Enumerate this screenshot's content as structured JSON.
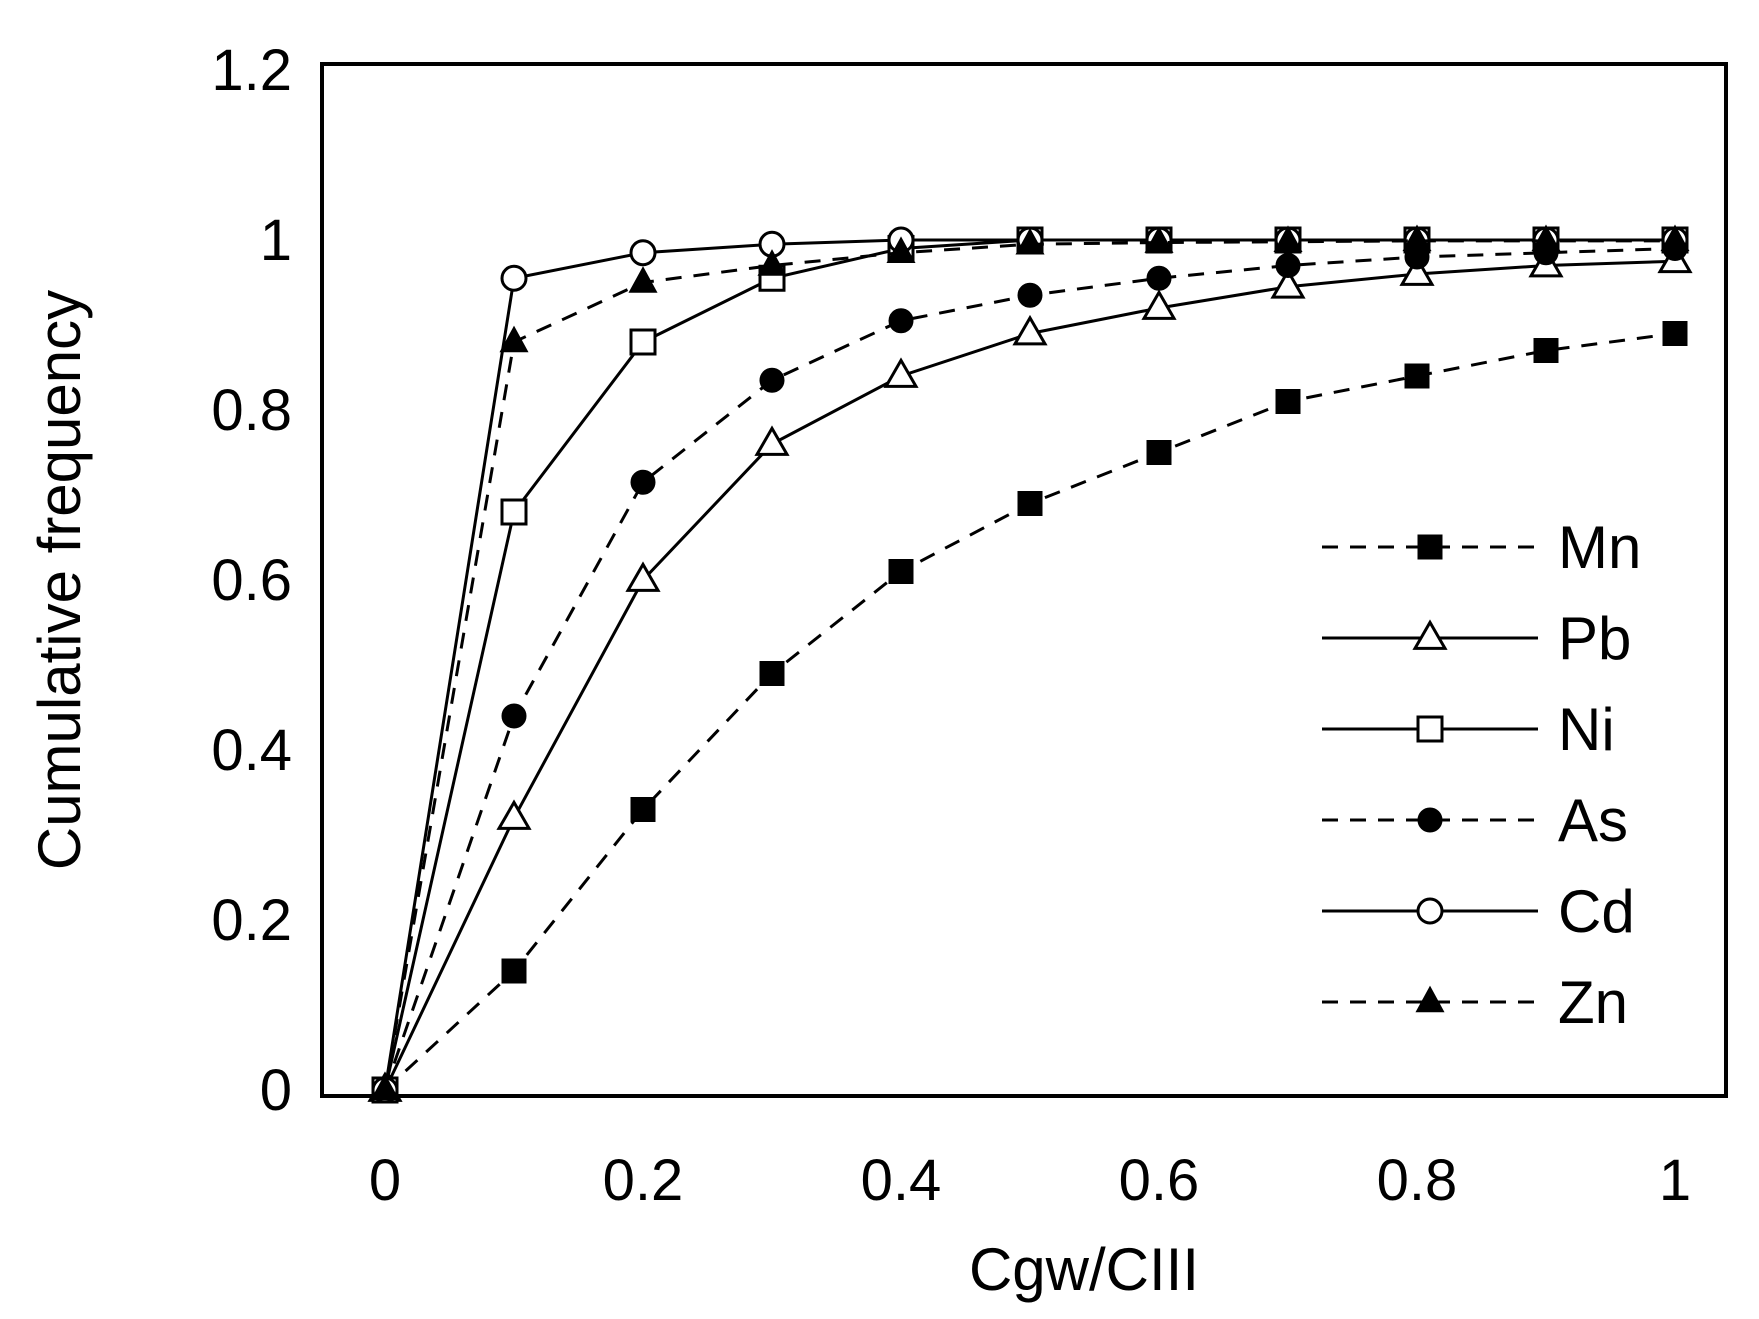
{
  "chart_data": {
    "type": "line",
    "title": "",
    "xlabel": "Cgw/CIII",
    "ylabel": "Cumulative frequency",
    "xlim": [
      0,
      1
    ],
    "ylim": [
      0,
      1.2
    ],
    "xticks": [
      0,
      0.2,
      0.4,
      0.6,
      0.8,
      1
    ],
    "xtick_labels": [
      "0",
      "0.2",
      "0.4",
      "0.6",
      "0.8",
      "1"
    ],
    "yticks": [
      0,
      0.2,
      0.4,
      0.6,
      0.8,
      1,
      1.2
    ],
    "ytick_labels": [
      "0",
      "0.2",
      "0.4",
      "0.6",
      "0.8",
      "1",
      "1.2"
    ],
    "grid": false,
    "legend_position": "right",
    "x": [
      0,
      0.1,
      0.2,
      0.3,
      0.4,
      0.5,
      0.6,
      0.7,
      0.8,
      0.9,
      1.0
    ],
    "series": [
      {
        "name": "Mn",
        "line": "dashed",
        "marker": "square-filled",
        "values": [
          0,
          0.14,
          0.33,
          0.49,
          0.61,
          0.69,
          0.75,
          0.81,
          0.84,
          0.87,
          0.89
        ]
      },
      {
        "name": "Pb",
        "line": "solid",
        "marker": "triangle-open",
        "values": [
          0,
          0.32,
          0.6,
          0.76,
          0.84,
          0.89,
          0.92,
          0.945,
          0.96,
          0.97,
          0.975
        ]
      },
      {
        "name": "Ni",
        "line": "solid",
        "marker": "square-open",
        "values": [
          0,
          0.68,
          0.88,
          0.955,
          0.99,
          1.0,
          1.0,
          1.0,
          1.0,
          1.0,
          1.0
        ]
      },
      {
        "name": "As",
        "line": "dashed",
        "marker": "circle-filled",
        "values": [
          0,
          0.44,
          0.715,
          0.835,
          0.905,
          0.935,
          0.955,
          0.97,
          0.98,
          0.985,
          0.99
        ]
      },
      {
        "name": "Cd",
        "line": "solid",
        "marker": "circle-open",
        "values": [
          0,
          0.955,
          0.985,
          0.995,
          1.0,
          1.0,
          1.0,
          1.0,
          1.0,
          1.0,
          1.0
        ]
      },
      {
        "name": "Zn",
        "line": "dashed",
        "marker": "triangle-filled",
        "values": [
          0,
          0.88,
          0.95,
          0.97,
          0.985,
          0.995,
          0.997,
          0.998,
          0.999,
          0.999,
          0.999
        ]
      }
    ]
  }
}
